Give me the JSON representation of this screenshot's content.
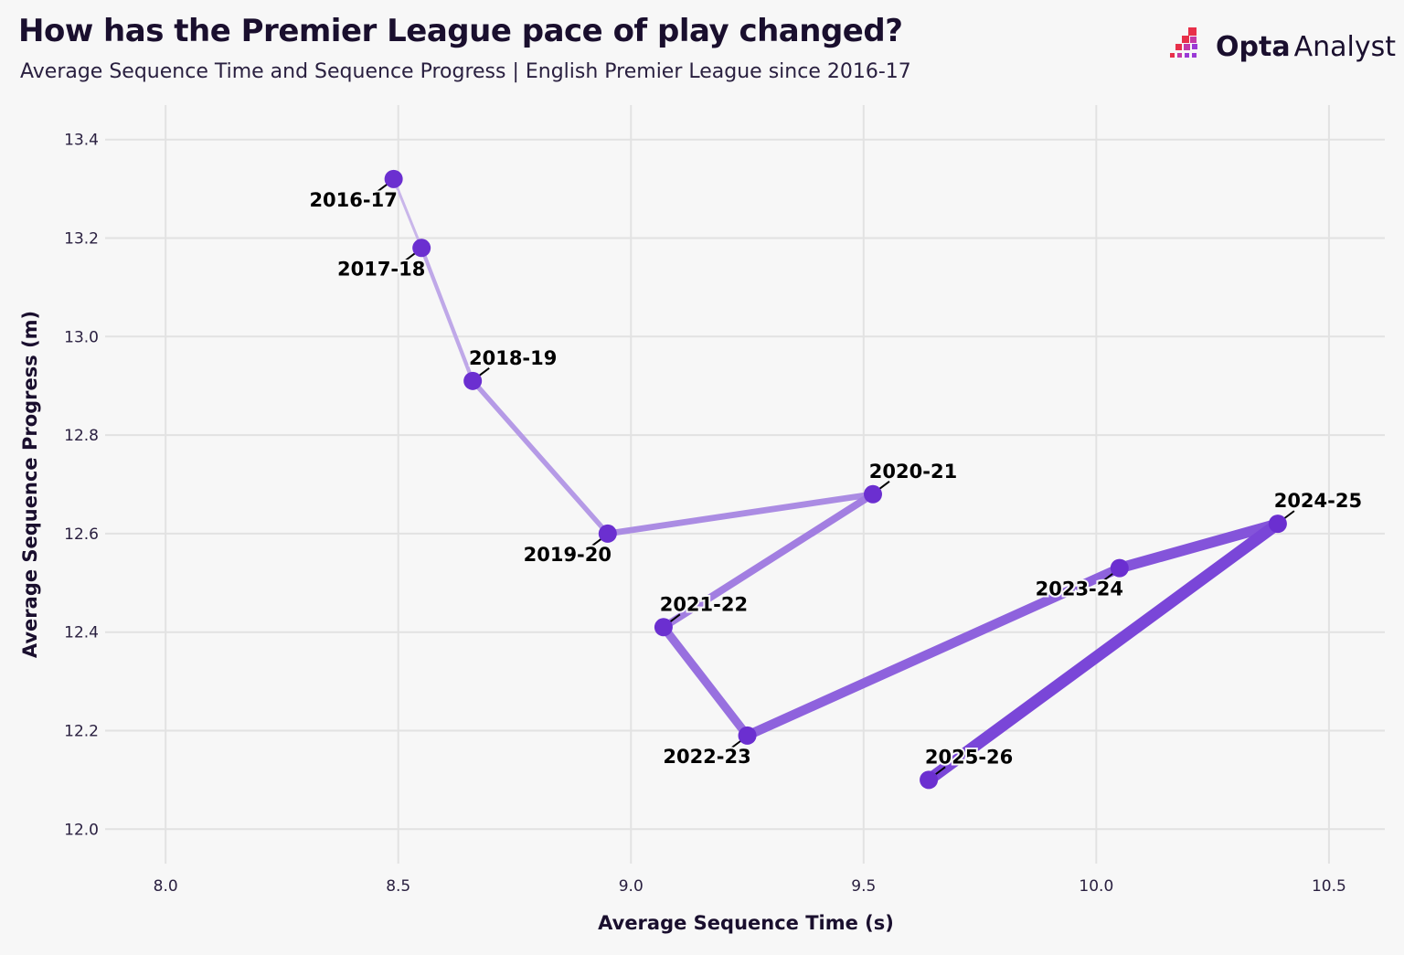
{
  "header": {
    "title": "How has the Premier League pace of play changed?",
    "subtitle": "Average Sequence Time and Sequence Progress | English Premier League since 2016-17"
  },
  "logo": {
    "text_bold": "Opta",
    "text_light": "Analyst",
    "colors": [
      "#e8304a",
      "#c43aa8",
      "#9a3ad6"
    ]
  },
  "chart_data": {
    "type": "line",
    "subtype": "connected-scatter",
    "xlabel": "Average Sequence Time (s)",
    "ylabel": "Average Sequence Progress (m)",
    "xlim": [
      7.87,
      10.62
    ],
    "ylim": [
      11.93,
      13.47
    ],
    "xticks": [
      "8.0",
      "8.5",
      "9.0",
      "9.5",
      "10.0",
      "10.5"
    ],
    "yticks": [
      "12.0",
      "12.2",
      "12.4",
      "12.6",
      "12.8",
      "13.0",
      "13.2",
      "13.4"
    ],
    "grid": true,
    "point_color": "#6b2fd0",
    "line_color_start": "#c9b6ea",
    "line_color_end": "#7a46d8",
    "points": [
      {
        "label": "2016-17",
        "x": 8.49,
        "y": 13.32
      },
      {
        "label": "2017-18",
        "x": 8.55,
        "y": 13.18
      },
      {
        "label": "2018-19",
        "x": 8.66,
        "y": 12.91
      },
      {
        "label": "2019-20",
        "x": 8.95,
        "y": 12.6
      },
      {
        "label": "2020-21",
        "x": 9.52,
        "y": 12.68
      },
      {
        "label": "2021-22",
        "x": 9.07,
        "y": 12.41
      },
      {
        "label": "2022-23",
        "x": 9.25,
        "y": 12.19
      },
      {
        "label": "2023-24",
        "x": 10.05,
        "y": 12.53
      },
      {
        "label": "2024-25",
        "x": 10.39,
        "y": 12.62
      },
      {
        "label": "2025-26",
        "x": 9.64,
        "y": 12.1
      }
    ]
  }
}
